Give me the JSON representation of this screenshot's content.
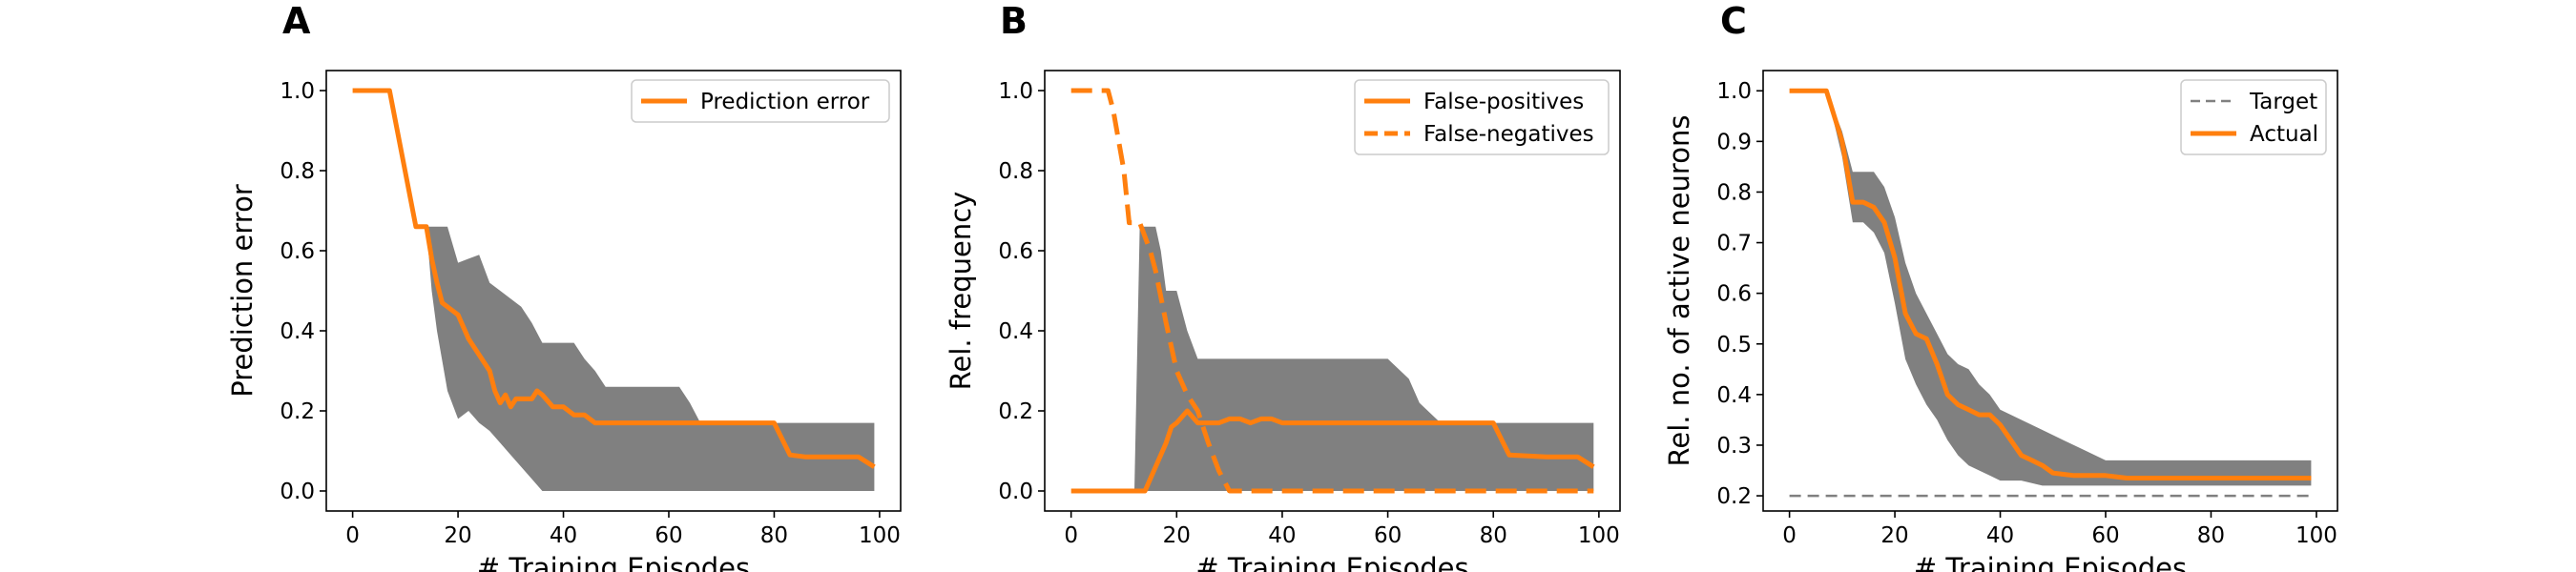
{
  "figure": {
    "colors": {
      "accent": "#ff7f0e",
      "band": "#808080",
      "target": "#808080"
    },
    "panels_letters": [
      "A",
      "B",
      "C"
    ]
  },
  "chart_data": [
    {
      "panel": "A",
      "type": "line",
      "xlabel": "# Training Episodes",
      "ylabel": "Prediction error",
      "xlim": [
        -5,
        104
      ],
      "ylim": [
        -0.05,
        1.05
      ],
      "xticks": [
        "0",
        "20",
        "40",
        "60",
        "80",
        "100"
      ],
      "yticks": [
        "0.0",
        "0.2",
        "0.4",
        "0.6",
        "0.8",
        "1.0"
      ],
      "legend_position": "top-right",
      "band": {
        "x": [
          0,
          7,
          12,
          14,
          15,
          16,
          18,
          20,
          22,
          24,
          26,
          28,
          30,
          32,
          34,
          36,
          38,
          40,
          42,
          44,
          46,
          48,
          50,
          54,
          58,
          62,
          64,
          66,
          70,
          76,
          80,
          84,
          88,
          92,
          96,
          99
        ],
        "lower": [
          1.0,
          1.0,
          0.66,
          0.66,
          0.5,
          0.4,
          0.25,
          0.18,
          0.2,
          0.17,
          0.15,
          0.12,
          0.09,
          0.06,
          0.03,
          0.0,
          0.0,
          0.0,
          0.0,
          0.0,
          0.0,
          0.0,
          0.0,
          0.0,
          0.0,
          0.0,
          0.0,
          0.0,
          0.0,
          0.0,
          0.0,
          0.0,
          0.0,
          0.0,
          0.0,
          0.0
        ],
        "upper": [
          1.0,
          1.0,
          0.66,
          0.66,
          0.66,
          0.66,
          0.66,
          0.57,
          0.58,
          0.59,
          0.52,
          0.5,
          0.48,
          0.46,
          0.42,
          0.37,
          0.37,
          0.37,
          0.37,
          0.33,
          0.3,
          0.26,
          0.26,
          0.26,
          0.26,
          0.26,
          0.22,
          0.17,
          0.17,
          0.17,
          0.17,
          0.17,
          0.17,
          0.17,
          0.17,
          0.17
        ]
      },
      "series": [
        {
          "name": "Prediction error",
          "style": "solid",
          "x": [
            0,
            7,
            12,
            14,
            15,
            16,
            17,
            18,
            20,
            22,
            24,
            26,
            27,
            28,
            29,
            30,
            31,
            32,
            34,
            35,
            36,
            38,
            40,
            42,
            44,
            46,
            50,
            60,
            70,
            80,
            83,
            86,
            90,
            96,
            99
          ],
          "y": [
            1.0,
            1.0,
            0.66,
            0.66,
            0.58,
            0.52,
            0.47,
            0.46,
            0.44,
            0.38,
            0.34,
            0.3,
            0.25,
            0.22,
            0.24,
            0.21,
            0.23,
            0.23,
            0.23,
            0.25,
            0.24,
            0.21,
            0.21,
            0.19,
            0.19,
            0.17,
            0.17,
            0.17,
            0.17,
            0.17,
            0.09,
            0.085,
            0.085,
            0.085,
            0.06
          ]
        }
      ]
    },
    {
      "panel": "B",
      "type": "line",
      "xlabel": "# Training Episodes",
      "ylabel": "Rel. frequency",
      "xlim": [
        -5,
        104
      ],
      "ylim": [
        -0.05,
        1.05
      ],
      "xticks": [
        "0",
        "20",
        "40",
        "60",
        "80",
        "100"
      ],
      "yticks": [
        "0.0",
        "0.2",
        "0.4",
        "0.6",
        "0.8",
        "1.0"
      ],
      "legend_position": "top-right",
      "band": {
        "x": [
          0,
          12,
          13,
          15,
          16,
          17,
          18,
          20,
          22,
          24,
          26,
          28,
          30,
          34,
          40,
          50,
          60,
          64,
          66,
          70,
          76,
          80,
          84,
          90,
          96,
          99
        ],
        "lower": [
          0.0,
          0.0,
          0.0,
          0.0,
          0.0,
          0.0,
          0.0,
          0.0,
          0.0,
          0.0,
          0.0,
          0.0,
          0.0,
          0.0,
          0.0,
          0.0,
          0.0,
          0.0,
          0.0,
          0.0,
          0.0,
          0.0,
          0.0,
          0.0,
          0.0,
          0.0
        ],
        "upper": [
          0.0,
          0.0,
          0.66,
          0.66,
          0.66,
          0.6,
          0.5,
          0.5,
          0.4,
          0.33,
          0.33,
          0.33,
          0.33,
          0.33,
          0.33,
          0.33,
          0.33,
          0.28,
          0.22,
          0.17,
          0.17,
          0.17,
          0.17,
          0.17,
          0.17,
          0.17
        ]
      },
      "series": [
        {
          "name": "False-positives",
          "style": "solid",
          "x": [
            0,
            14,
            16,
            18,
            19,
            20,
            22,
            24,
            26,
            28,
            30,
            32,
            34,
            36,
            38,
            40,
            50,
            60,
            70,
            80,
            83,
            90,
            96,
            99
          ],
          "y": [
            0.0,
            0.0,
            0.06,
            0.12,
            0.16,
            0.17,
            0.2,
            0.17,
            0.17,
            0.17,
            0.18,
            0.18,
            0.17,
            0.18,
            0.18,
            0.17,
            0.17,
            0.17,
            0.17,
            0.17,
            0.09,
            0.085,
            0.085,
            0.06
          ]
        },
        {
          "name": "False-negatives",
          "style": "dashed",
          "x": [
            0,
            7,
            8,
            10,
            11,
            13,
            15,
            16,
            18,
            20,
            22,
            24,
            26,
            28,
            30,
            32,
            40,
            60,
            80,
            99
          ],
          "y": [
            1.0,
            1.0,
            0.95,
            0.8,
            0.67,
            0.67,
            0.6,
            0.55,
            0.42,
            0.3,
            0.24,
            0.2,
            0.12,
            0.05,
            0.0,
            0.0,
            0.0,
            0.0,
            0.0,
            0.0
          ]
        }
      ]
    },
    {
      "panel": "C",
      "type": "line",
      "xlabel": "# Training Episodes",
      "ylabel": "Rel. no. of active neurons",
      "xlim": [
        -5,
        104
      ],
      "ylim": [
        0.17,
        1.04
      ],
      "xticks": [
        "0",
        "20",
        "40",
        "60",
        "80",
        "100"
      ],
      "yticks": [
        "0.2",
        "0.3",
        "0.4",
        "0.5",
        "0.6",
        "0.7",
        "0.8",
        "0.9",
        "1.0"
      ],
      "legend_position": "top-right",
      "band": {
        "x": [
          0,
          7,
          10,
          12,
          14,
          16,
          18,
          20,
          22,
          24,
          26,
          28,
          30,
          32,
          34,
          36,
          38,
          40,
          44,
          48,
          52,
          56,
          60,
          64,
          70,
          80,
          90,
          99
        ],
        "lower": [
          1.0,
          1.0,
          0.87,
          0.74,
          0.74,
          0.72,
          0.68,
          0.58,
          0.47,
          0.42,
          0.38,
          0.35,
          0.31,
          0.28,
          0.26,
          0.25,
          0.24,
          0.23,
          0.23,
          0.22,
          0.22,
          0.22,
          0.22,
          0.22,
          0.22,
          0.22,
          0.22,
          0.22
        ],
        "upper": [
          1.0,
          1.0,
          0.92,
          0.84,
          0.84,
          0.84,
          0.81,
          0.75,
          0.66,
          0.6,
          0.56,
          0.52,
          0.48,
          0.46,
          0.45,
          0.42,
          0.4,
          0.37,
          0.35,
          0.33,
          0.31,
          0.29,
          0.27,
          0.27,
          0.27,
          0.27,
          0.27,
          0.27
        ]
      },
      "series": [
        {
          "name": "Target",
          "style": "dashed-thin",
          "x": [
            0,
            99
          ],
          "y": [
            0.2,
            0.2
          ]
        },
        {
          "name": "Actual",
          "style": "solid",
          "x": [
            0,
            7,
            10,
            12,
            14,
            16,
            18,
            20,
            22,
            24,
            26,
            28,
            30,
            32,
            34,
            36,
            38,
            40,
            42,
            44,
            46,
            48,
            50,
            54,
            60,
            64,
            70,
            80,
            90,
            99
          ],
          "y": [
            1.0,
            1.0,
            0.9,
            0.78,
            0.78,
            0.77,
            0.74,
            0.67,
            0.56,
            0.52,
            0.51,
            0.46,
            0.4,
            0.38,
            0.37,
            0.36,
            0.36,
            0.34,
            0.31,
            0.28,
            0.27,
            0.26,
            0.245,
            0.24,
            0.24,
            0.235,
            0.235,
            0.235,
            0.235,
            0.235
          ]
        }
      ]
    }
  ]
}
